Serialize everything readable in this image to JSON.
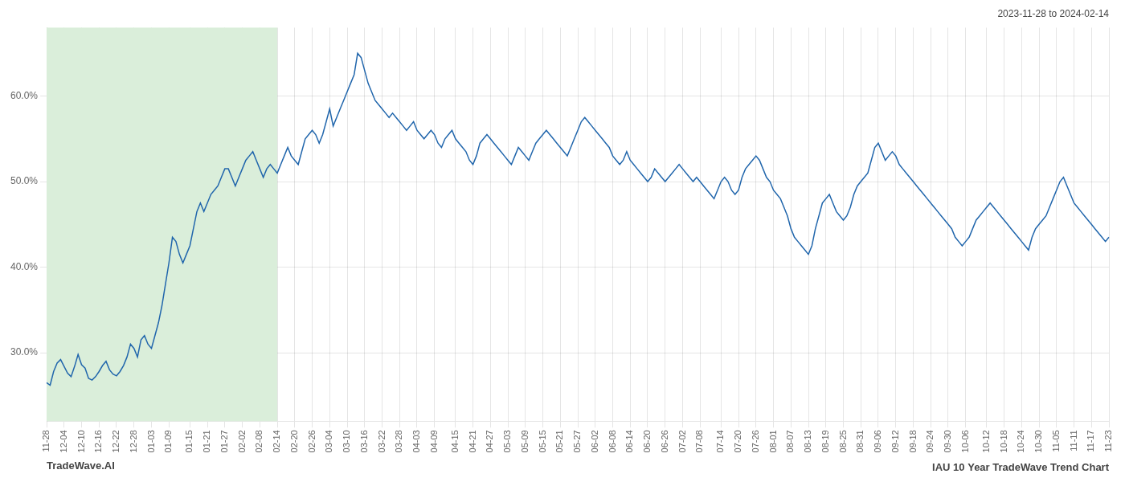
{
  "chart_data": {
    "type": "line",
    "title": "IAU 10 Year TradeWave Trend Chart",
    "subtitle": "2023-11-28 to 2024-02-14",
    "annotations": [
      "TradeWave.AI"
    ],
    "color": "#2166ac",
    "grid": true,
    "highlight": {
      "start": "11-28",
      "end": "02-14",
      "color": "#daeeda"
    },
    "ylim": [
      22.0,
      68.0
    ],
    "yticks": [
      {
        "value": 30.0,
        "label": "30.0%"
      },
      {
        "value": 40.0,
        "label": "40.0%"
      },
      {
        "value": 50.0,
        "label": "50.0%"
      },
      {
        "value": 60.0,
        "label": "60.0%"
      }
    ],
    "categories": [
      "11-28",
      null,
      null,
      null,
      null,
      "12-04",
      null,
      null,
      null,
      null,
      "12-10",
      null,
      null,
      null,
      null,
      "12-16",
      null,
      null,
      null,
      null,
      "12-22",
      null,
      null,
      null,
      null,
      "12-28",
      null,
      null,
      null,
      null,
      "01-03",
      null,
      null,
      null,
      null,
      "01-09",
      null,
      null,
      null,
      null,
      null,
      "01-15",
      null,
      null,
      null,
      null,
      "01-21",
      null,
      null,
      null,
      null,
      "01-27",
      null,
      null,
      null,
      null,
      "02-02",
      null,
      null,
      null,
      null,
      "02-08",
      null,
      null,
      null,
      null,
      "02-14",
      null,
      null,
      null,
      null,
      "02-20",
      null,
      null,
      null,
      null,
      "02-26",
      null,
      null,
      null,
      null,
      "03-04",
      null,
      null,
      null,
      null,
      "03-10",
      null,
      null,
      null,
      null,
      "03-16",
      null,
      null,
      null,
      null,
      "03-22",
      null,
      null,
      null,
      null,
      "03-28",
      null,
      null,
      null,
      null,
      "04-03",
      null,
      null,
      null,
      null,
      "04-09",
      null,
      null,
      null,
      null,
      null,
      "04-15",
      null,
      null,
      null,
      null,
      "04-21",
      null,
      null,
      null,
      null,
      "04-27",
      null,
      null,
      null,
      null,
      "05-03",
      null,
      null,
      null,
      null,
      "05-09",
      null,
      null,
      null,
      null,
      "05-15",
      null,
      null,
      null,
      null,
      "05-21",
      null,
      null,
      null,
      null,
      "05-27",
      null,
      null,
      null,
      null,
      "06-02",
      null,
      null,
      null,
      null,
      "06-08",
      null,
      null,
      null,
      null,
      "06-14",
      null,
      null,
      null,
      null,
      "06-20",
      null,
      null,
      null,
      null,
      "06-26",
      null,
      null,
      null,
      null,
      "07-02",
      null,
      null,
      null,
      null,
      "07-08",
      null,
      null,
      null,
      null,
      null,
      "07-14",
      null,
      null,
      null,
      null,
      "07-20",
      null,
      null,
      null,
      null,
      "07-26",
      null,
      null,
      null,
      null,
      "08-01",
      null,
      null,
      null,
      null,
      "08-07",
      null,
      null,
      null,
      null,
      "08-13",
      null,
      null,
      null,
      null,
      "08-19",
      null,
      null,
      null,
      null,
      "08-25",
      null,
      null,
      null,
      null,
      "08-31",
      null,
      null,
      null,
      null,
      "09-06",
      null,
      null,
      null,
      null,
      "09-12",
      null,
      null,
      null,
      null,
      "09-18",
      null,
      null,
      null,
      null,
      "09-24",
      null,
      null,
      null,
      null,
      "09-30",
      null,
      null,
      null,
      null,
      "10-06",
      null,
      null,
      null,
      null,
      null,
      "10-12",
      null,
      null,
      null,
      null,
      "10-18",
      null,
      null,
      null,
      null,
      "10-24",
      null,
      null,
      null,
      null,
      "10-30",
      null,
      null,
      null,
      null,
      "11-05",
      null,
      null,
      null,
      null,
      "11-11",
      null,
      null,
      null,
      null,
      "11-17",
      null,
      null,
      null,
      null,
      "11-23"
    ],
    "values": [
      26.5,
      26.2,
      27.8,
      28.8,
      29.2,
      28.4,
      27.6,
      27.2,
      28.4,
      29.8,
      28.6,
      28.2,
      27.0,
      26.8,
      27.2,
      27.8,
      28.5,
      29.0,
      28.0,
      27.5,
      27.3,
      27.8,
      28.5,
      29.5,
      31.0,
      30.5,
      29.5,
      31.5,
      32.0,
      31.0,
      30.5,
      32.0,
      33.5,
      35.5,
      38.0,
      40.5,
      43.5,
      43.0,
      41.5,
      40.5,
      41.5,
      42.5,
      44.5,
      46.5,
      47.5,
      46.5,
      47.5,
      48.5,
      49.0,
      49.5,
      50.5,
      51.5,
      51.5,
      50.5,
      49.5,
      50.5,
      51.5,
      52.5,
      53.0,
      53.5,
      52.5,
      51.5,
      50.5,
      51.5,
      52.0,
      51.5,
      51.0,
      52.0,
      53.0,
      54.0,
      53.0,
      52.5,
      52.0,
      53.5,
      55.0,
      55.5,
      56.0,
      55.5,
      54.5,
      55.5,
      57.0,
      58.5,
      56.5,
      57.5,
      58.5,
      59.5,
      60.5,
      61.5,
      62.5,
      65.0,
      64.5,
      63.0,
      61.5,
      60.5,
      59.5,
      59.0,
      58.5,
      58.0,
      57.5,
      58.0,
      57.5,
      57.0,
      56.5,
      56.0,
      56.5,
      57.0,
      56.0,
      55.5,
      55.0,
      55.5,
      56.0,
      55.5,
      54.5,
      54.0,
      55.0,
      55.5,
      56.0,
      55.0,
      54.5,
      54.0,
      53.5,
      52.5,
      52.0,
      53.0,
      54.5,
      55.0,
      55.5,
      55.0,
      54.5,
      54.0,
      53.5,
      53.0,
      52.5,
      52.0,
      53.0,
      54.0,
      53.5,
      53.0,
      52.5,
      53.5,
      54.5,
      55.0,
      55.5,
      56.0,
      55.5,
      55.0,
      54.5,
      54.0,
      53.5,
      53.0,
      54.0,
      55.0,
      56.0,
      57.0,
      57.5,
      57.0,
      56.5,
      56.0,
      55.5,
      55.0,
      54.5,
      54.0,
      53.0,
      52.5,
      52.0,
      52.5,
      53.5,
      52.5,
      52.0,
      51.5,
      51.0,
      50.5,
      50.0,
      50.5,
      51.5,
      51.0,
      50.5,
      50.0,
      50.5,
      51.0,
      51.5,
      52.0,
      51.5,
      51.0,
      50.5,
      50.0,
      50.5,
      50.0,
      49.5,
      49.0,
      48.5,
      48.0,
      49.0,
      50.0,
      50.5,
      50.0,
      49.0,
      48.5,
      49.0,
      50.5,
      51.5,
      52.0,
      52.5,
      53.0,
      52.5,
      51.5,
      50.5,
      50.0,
      49.0,
      48.5,
      48.0,
      47.0,
      46.0,
      44.5,
      43.5,
      43.0,
      42.5,
      42.0,
      41.5,
      42.5,
      44.5,
      46.0,
      47.5,
      48.0,
      48.5,
      47.5,
      46.5,
      46.0,
      45.5,
      46.0,
      47.0,
      48.5,
      49.5,
      50.0,
      50.5,
      51.0,
      52.5,
      54.0,
      54.5,
      53.5,
      52.5,
      53.0,
      53.5,
      53.0,
      52.0,
      51.5,
      51.0,
      50.5,
      50.0,
      49.5,
      49.0,
      48.5,
      48.0,
      47.5,
      47.0,
      46.5,
      46.0,
      45.5,
      45.0,
      44.5,
      43.5,
      43.0,
      42.5,
      43.0,
      43.5,
      44.5,
      45.5,
      46.0,
      46.5,
      47.0,
      47.5,
      47.0,
      46.5,
      46.0,
      45.5,
      45.0,
      44.5,
      44.0,
      43.5,
      43.0,
      42.5,
      42.0,
      43.5,
      44.5,
      45.0,
      45.5,
      46.0,
      47.0,
      48.0,
      49.0,
      50.0,
      50.5,
      49.5,
      48.5,
      47.5,
      47.0,
      46.5,
      46.0,
      45.5,
      45.0,
      44.5,
      44.0,
      43.5,
      43.0,
      43.5
    ]
  }
}
